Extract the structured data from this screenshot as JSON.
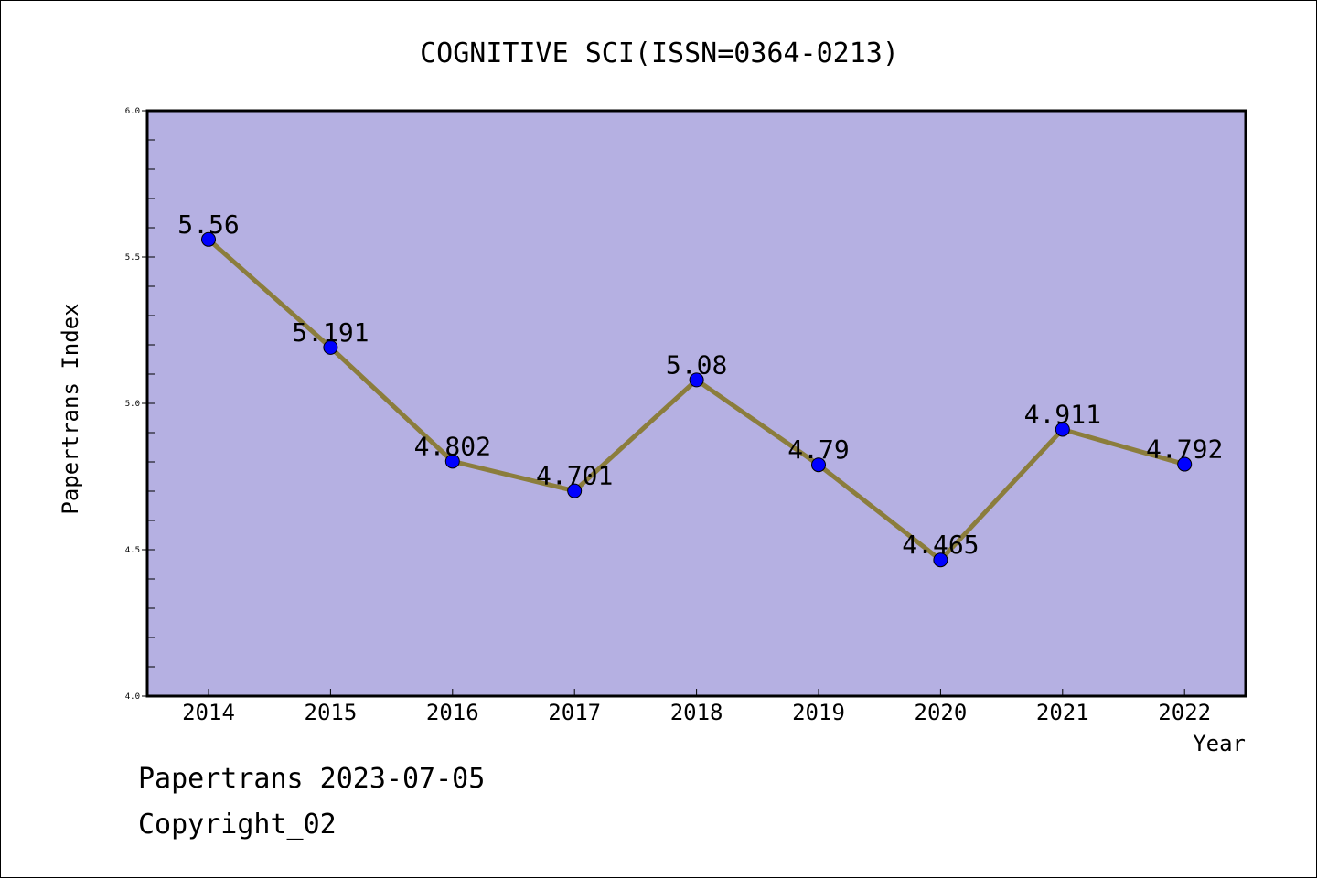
{
  "chart_data": {
    "type": "line",
    "title": "COGNITIVE SCI(ISSN=0364-0213)",
    "xlabel": "Year",
    "ylabel": "Papertrans Index",
    "categories": [
      "2014",
      "2015",
      "2016",
      "2017",
      "2018",
      "2019",
      "2020",
      "2021",
      "2022"
    ],
    "series": [
      {
        "values": [
          5.56,
          5.191,
          4.802,
          4.701,
          5.08,
          4.79,
          4.465,
          4.911,
          4.792
        ],
        "labels": [
          "5.56",
          "5.191",
          "4.802",
          "4.701",
          "5.08",
          "4.79",
          "4.465",
          "4.911",
          "4.792"
        ]
      }
    ],
    "ylim": [
      4.0,
      6.0
    ],
    "yticks": [
      "4.0",
      "4.5",
      "5.0",
      "5.5",
      "6.0"
    ],
    "grid": false,
    "colors": {
      "plot_background": "#b5b0e2",
      "line": "#8b7d3c",
      "marker": "#0000ff"
    }
  },
  "footer": {
    "line1": "Papertrans 2023-07-05",
    "line2": "Copyright_02"
  }
}
